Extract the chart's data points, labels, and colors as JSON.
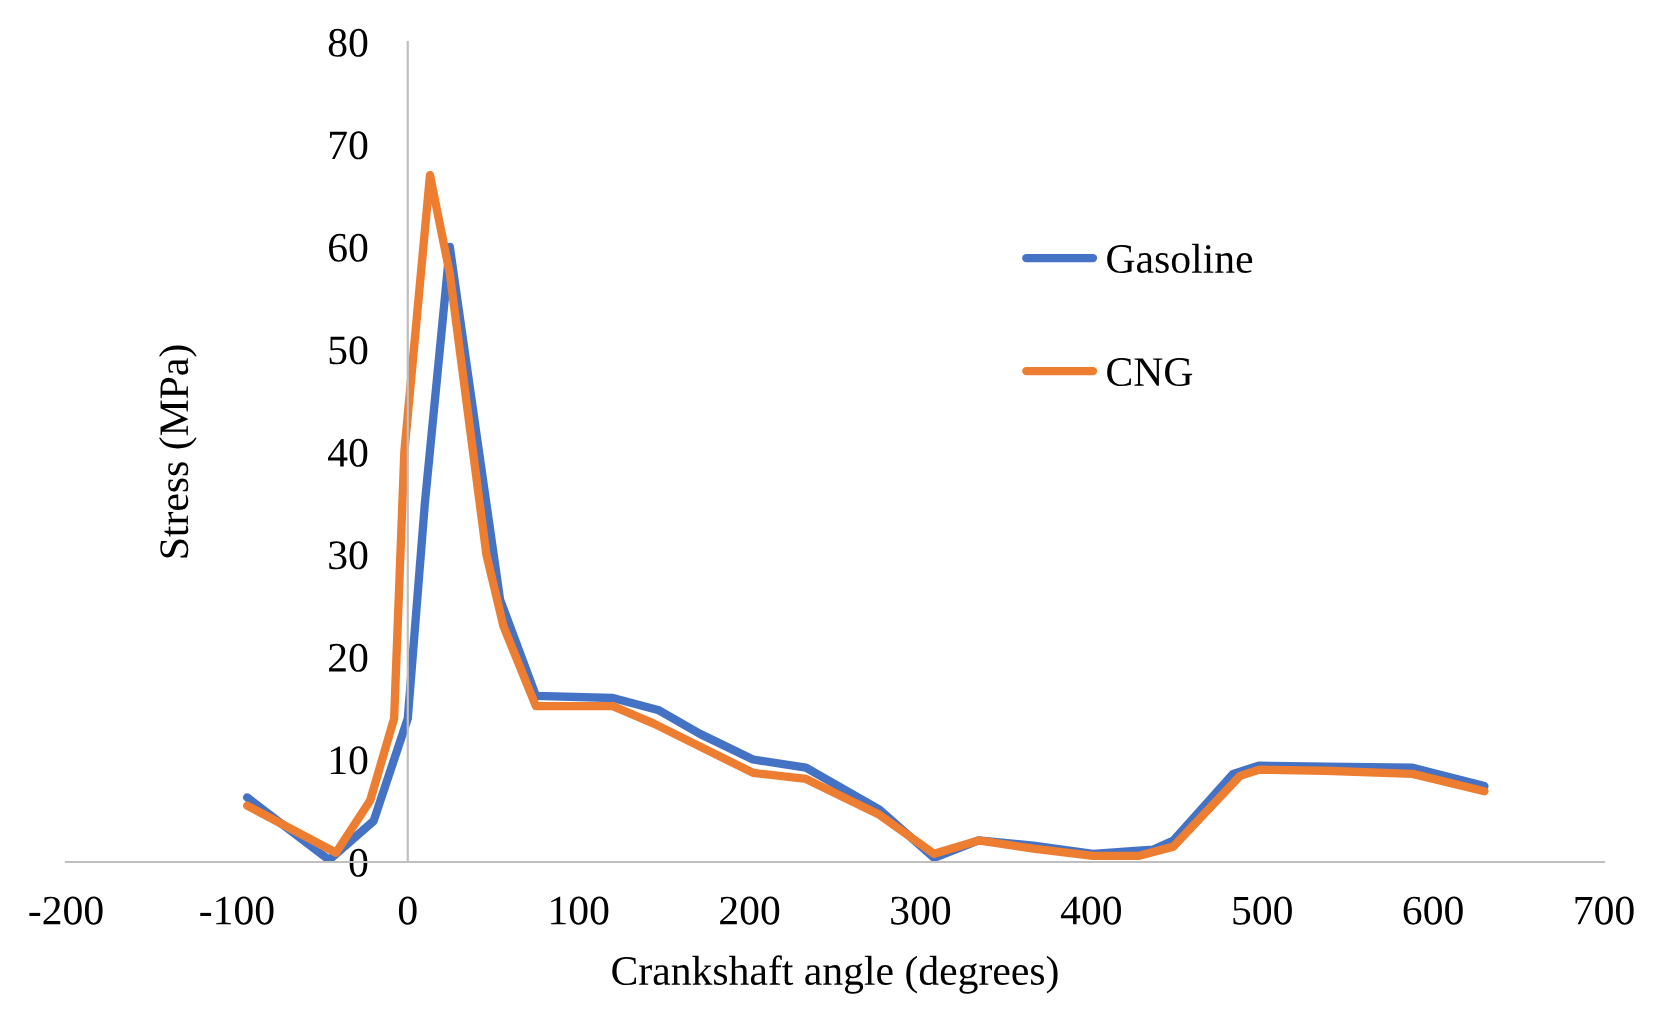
{
  "chart_data": {
    "type": "line",
    "xlabel": "Crankshaft angle (degrees)",
    "ylabel": "Stress (MPa)",
    "xlim": [
      -200,
      700
    ],
    "xticks": [
      -200,
      -100,
      0,
      100,
      200,
      300,
      400,
      500,
      600,
      700
    ],
    "ylim": [
      0,
      80
    ],
    "yticks": [
      0,
      10,
      20,
      30,
      40,
      50,
      60,
      70,
      80
    ],
    "grid": false,
    "legend": "right",
    "marker": "none",
    "line_style": "solid",
    "series": [
      {
        "name": "Gasoline",
        "color": "#4472c4",
        "x": [
          -94,
          -46,
          -20,
          0,
          10,
          24.6,
          54,
          75,
          120,
          147,
          171,
          202,
          233,
          276,
          308,
          334,
          366,
          401,
          436,
          448,
          483,
          498,
          537,
          588,
          630
        ],
        "values": [
          6.3,
          0.2,
          4,
          14,
          35,
          60,
          25.6,
          16.2,
          16,
          14.8,
          12.5,
          10,
          9.2,
          5.1,
          0.4,
          2.1,
          1.6,
          0.8,
          1.2,
          2.1,
          8.6,
          9.4,
          9.3,
          9.2,
          7.4
        ]
      },
      {
        "name": "CNG",
        "color": "#ed7d31",
        "x": [
          -94,
          -42,
          -22,
          -8,
          -2,
          13,
          24.6,
          46,
          56,
          75,
          120,
          144,
          202,
          233,
          276,
          308,
          334,
          366,
          401,
          428,
          448,
          487,
          498,
          537,
          588,
          630
        ],
        "values": [
          5.5,
          0.9,
          6,
          14,
          40,
          67,
          57.4,
          30,
          23,
          15.2,
          15.2,
          13.5,
          8.7,
          8.1,
          4.6,
          0.8,
          2.1,
          1.3,
          0.6,
          0.6,
          1.5,
          8.4,
          9.0,
          8.9,
          8.6,
          6.9
        ]
      }
    ]
  }
}
